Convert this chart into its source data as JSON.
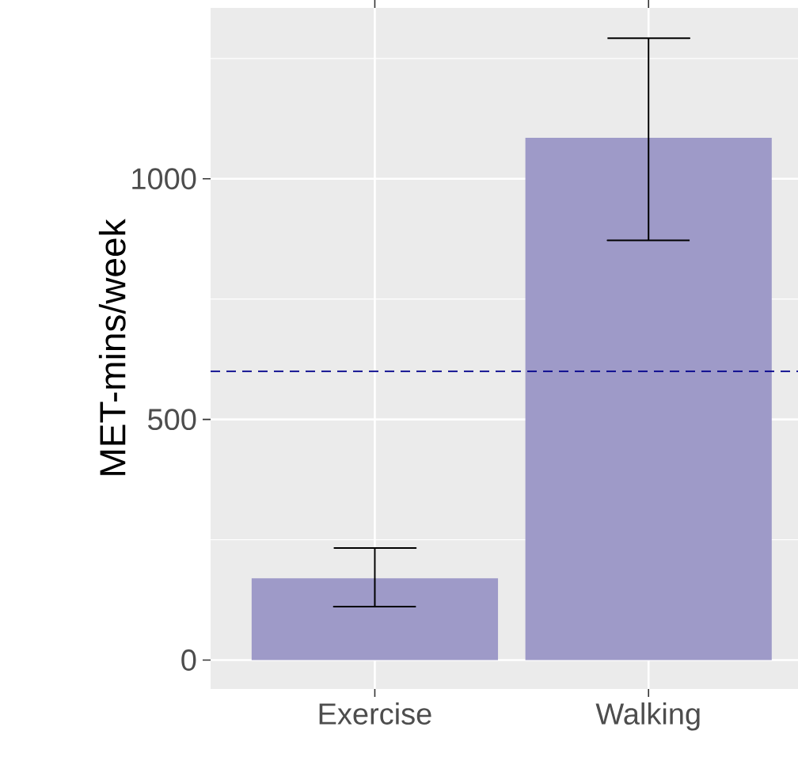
{
  "chart_data": {
    "type": "bar",
    "ylabel": "MET-mins/week",
    "categories": [
      "Exercise",
      "Walking"
    ],
    "values": [
      170,
      1085
    ],
    "errors": [
      [
        111,
        233
      ],
      [
        872,
        1292
      ]
    ],
    "color": "#9e9ac8",
    "ylim": [
      -60,
      1355
    ],
    "yticks": [
      0,
      500,
      1000,
      {
        "value": 250,
        "label": null
      },
      {
        "value": 750,
        "label": null
      },
      {
        "value": 1250,
        "label": null
      }
    ],
    "grid": true,
    "ref_lines": [
      {
        "axis": "y",
        "value": 600,
        "color": "#00008b",
        "line_style": "dashed"
      }
    ]
  }
}
